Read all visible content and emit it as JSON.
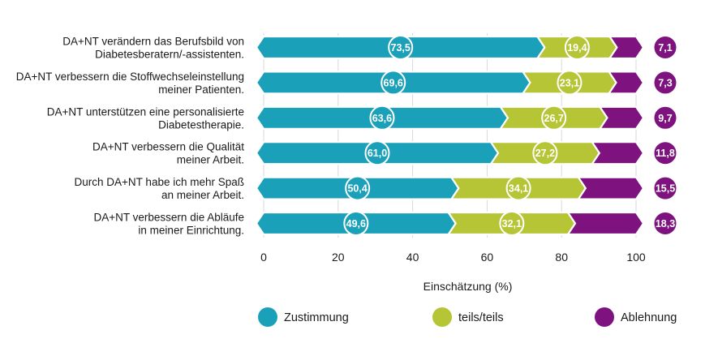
{
  "chart_data": {
    "type": "bar",
    "orientation": "horizontal",
    "stacked": true,
    "categories": [
      [
        "DA+NT verändern das Berufsbild von",
        "Diabetesberatern/-assistenten."
      ],
      [
        "DA+NT verbessern die Stoffwechseleinstellung",
        "meiner Patienten."
      ],
      [
        "DA+NT unterstützen eine personalisierte",
        "Diabetestherapie."
      ],
      [
        "DA+NT verbessern die Qualität",
        "meiner Arbeit."
      ],
      [
        "Durch DA+NT habe ich mehr Spaß",
        "an meiner Arbeit."
      ],
      [
        "DA+NT verbessern die Abläufe",
        "in meiner Einrichtung."
      ]
    ],
    "series": [
      {
        "name": "Zustimmung",
        "color": "#1aa1b9",
        "values": [
          73.5,
          69.6,
          63.6,
          61.0,
          50.4,
          49.6
        ],
        "labels": [
          "73,5",
          "69,6",
          "63,6",
          "61,0",
          "50,4",
          "49,6"
        ]
      },
      {
        "name": "teils/teils",
        "color": "#b5c535",
        "values": [
          19.4,
          23.1,
          26.7,
          27.2,
          34.1,
          32.1
        ],
        "labels": [
          "19,4",
          "23,1",
          "26,7",
          "27,2",
          "34,1",
          "32,1"
        ]
      },
      {
        "name": "Ablehnung",
        "color": "#7e1380",
        "values": [
          7.1,
          7.3,
          9.7,
          11.8,
          15.5,
          18.3
        ],
        "labels": [
          "7,1",
          "7,3",
          "9,7",
          "11,8",
          "15,5",
          "18,3"
        ]
      }
    ],
    "xlabel": "Einschätzung (%)",
    "xlim": [
      0,
      100
    ],
    "xticks": [
      "0",
      "20",
      "40",
      "60",
      "80",
      "100"
    ],
    "legend_position": "bottom",
    "grid": false
  }
}
